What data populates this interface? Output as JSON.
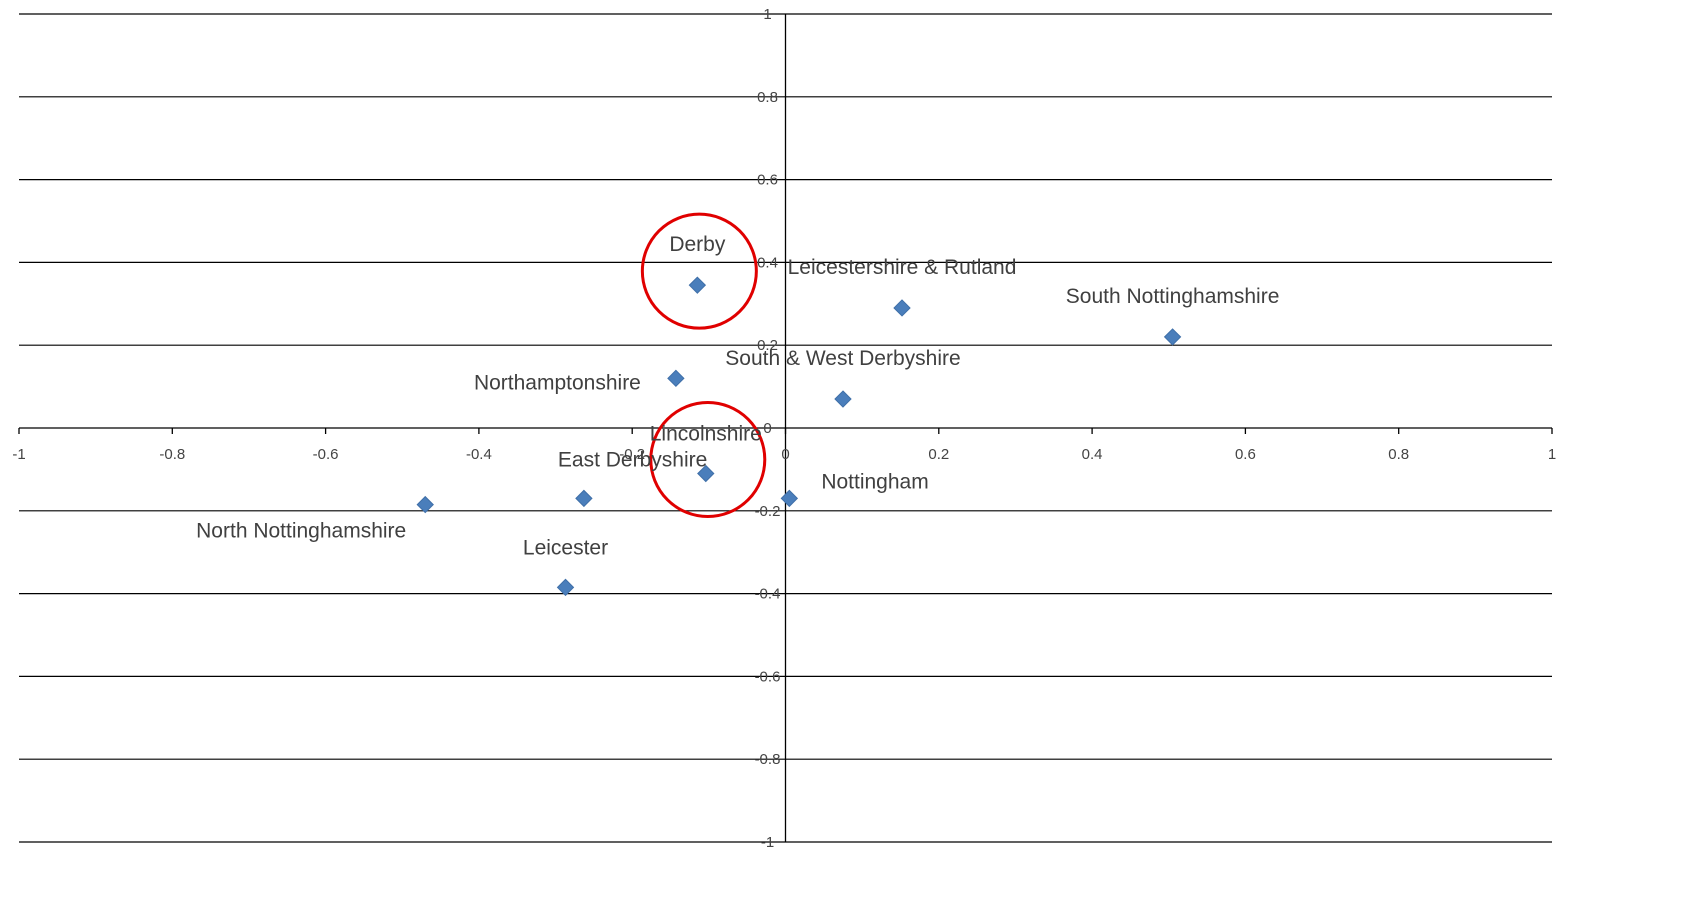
{
  "chart_data": {
    "type": "scatter",
    "title": "",
    "xlabel": "",
    "ylabel": "",
    "xlim": [
      -1,
      1
    ],
    "ylim": [
      -1,
      1
    ],
    "grid": "horizontal",
    "legend": "none",
    "marker": "diamond",
    "marker_color": "#4a7ebb",
    "highlight_color": "#e00000",
    "x_ticks": [
      -1,
      -0.8,
      -0.6,
      -0.4,
      -0.2,
      0,
      0.2,
      0.4,
      0.6,
      0.8,
      1
    ],
    "y_ticks": [
      1,
      0.8,
      0.6,
      0.4,
      0.2,
      0,
      -0.2,
      -0.4,
      -0.6,
      -0.8,
      -1
    ],
    "points": [
      {
        "name": "Derby",
        "x": -0.115,
        "y": 0.345,
        "highlighted": true
      },
      {
        "name": "Leicestershire & Rutland",
        "x": 0.152,
        "y": 0.29,
        "highlighted": false
      },
      {
        "name": "South Nottinghamshire",
        "x": 0.505,
        "y": 0.22,
        "highlighted": false
      },
      {
        "name": "Northamptonshire",
        "x": -0.143,
        "y": 0.12,
        "highlighted": false
      },
      {
        "name": "South & West Derbyshire",
        "x": 0.075,
        "y": 0.07,
        "highlighted": false
      },
      {
        "name": "Lincolnshire",
        "x": -0.104,
        "y": -0.11,
        "highlighted": true
      },
      {
        "name": "East Derbyshire",
        "x": -0.263,
        "y": -0.17,
        "highlighted": false
      },
      {
        "name": "Nottingham",
        "x": 0.005,
        "y": -0.17,
        "highlighted": false
      },
      {
        "name": "North Nottinghamshire",
        "x": -0.47,
        "y": -0.185,
        "highlighted": false
      },
      {
        "name": "Leicester",
        "x": -0.287,
        "y": -0.385,
        "highlighted": false
      }
    ]
  }
}
